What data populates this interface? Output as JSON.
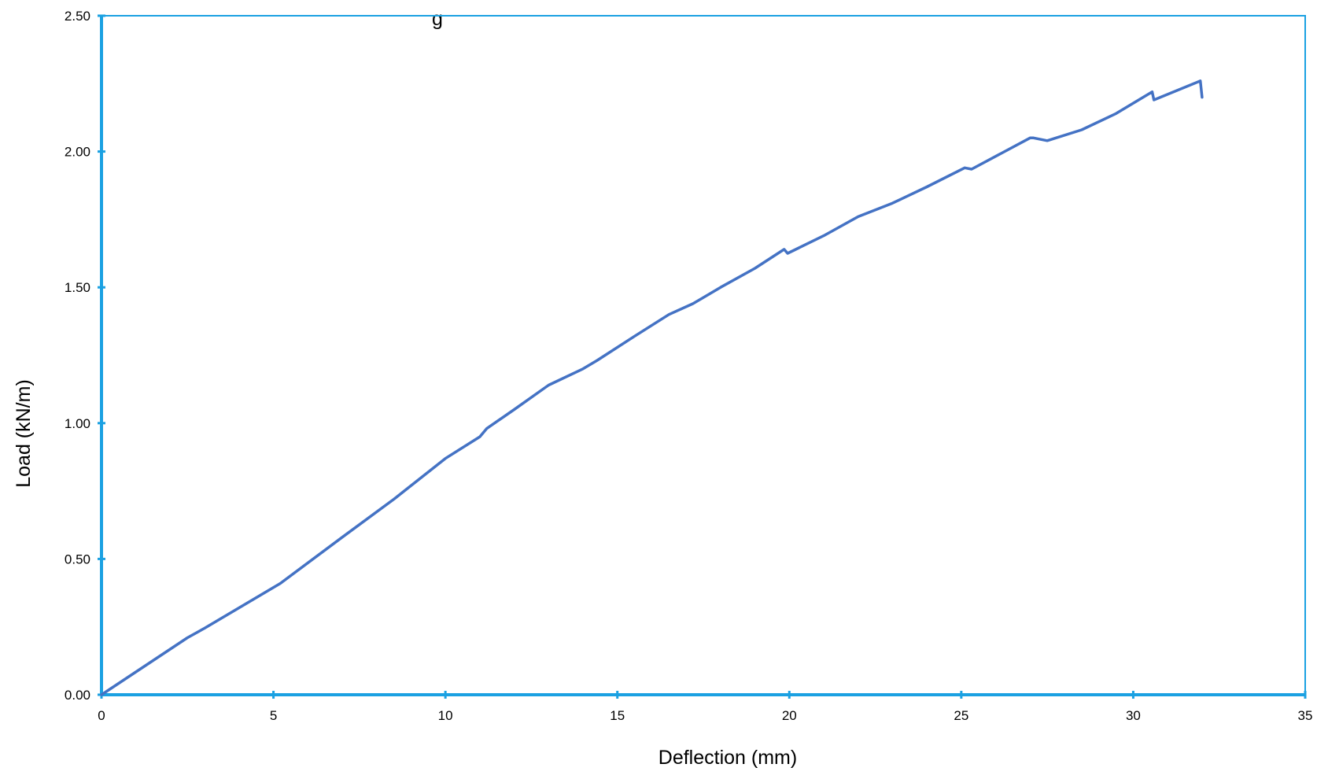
{
  "chart_data": {
    "type": "line",
    "title_fragment": "g",
    "xlabel": "Deflection (mm)",
    "ylabel": "Load (kN/m)",
    "xlim": [
      0,
      35
    ],
    "ylim": [
      0,
      2.5
    ],
    "x_ticks": [
      0,
      5,
      10,
      15,
      20,
      25,
      30,
      35
    ],
    "x_tick_labels": [
      "0",
      "5",
      "10",
      "15",
      "20",
      "25",
      "30",
      "35"
    ],
    "y_ticks": [
      0,
      0.5,
      1.0,
      1.5,
      2.0,
      2.5
    ],
    "y_tick_labels": [
      "0.00",
      "0.50",
      "1.00",
      "1.50",
      "2.00",
      "2.50"
    ],
    "grid": false,
    "legend": "none",
    "colors": {
      "series": "#4472C4",
      "axis": "#1BA1E2"
    },
    "series": [
      {
        "x": [
          0,
          2.5,
          3.0,
          5.2,
          7.0,
          8.5,
          10.0,
          11.0,
          11.2,
          12.0,
          13.0,
          14.0,
          14.4,
          15.5,
          16.5,
          17.2,
          18.0,
          19.0,
          19.85,
          19.95,
          21.0,
          22.0,
          23.0,
          24.0,
          25.1,
          25.3,
          27.0,
          27.1,
          27.5,
          28.5,
          29.5,
          30.55,
          30.6,
          31.95,
          32.0
        ],
        "y": [
          0,
          0.21,
          0.245,
          0.41,
          0.58,
          0.72,
          0.87,
          0.95,
          0.98,
          1.05,
          1.14,
          1.2,
          1.23,
          1.32,
          1.4,
          1.44,
          1.5,
          1.57,
          1.64,
          1.625,
          1.69,
          1.76,
          1.81,
          1.87,
          1.94,
          1.935,
          2.05,
          2.05,
          2.04,
          2.08,
          2.14,
          2.22,
          2.19,
          2.26,
          2.2
        ]
      }
    ]
  }
}
